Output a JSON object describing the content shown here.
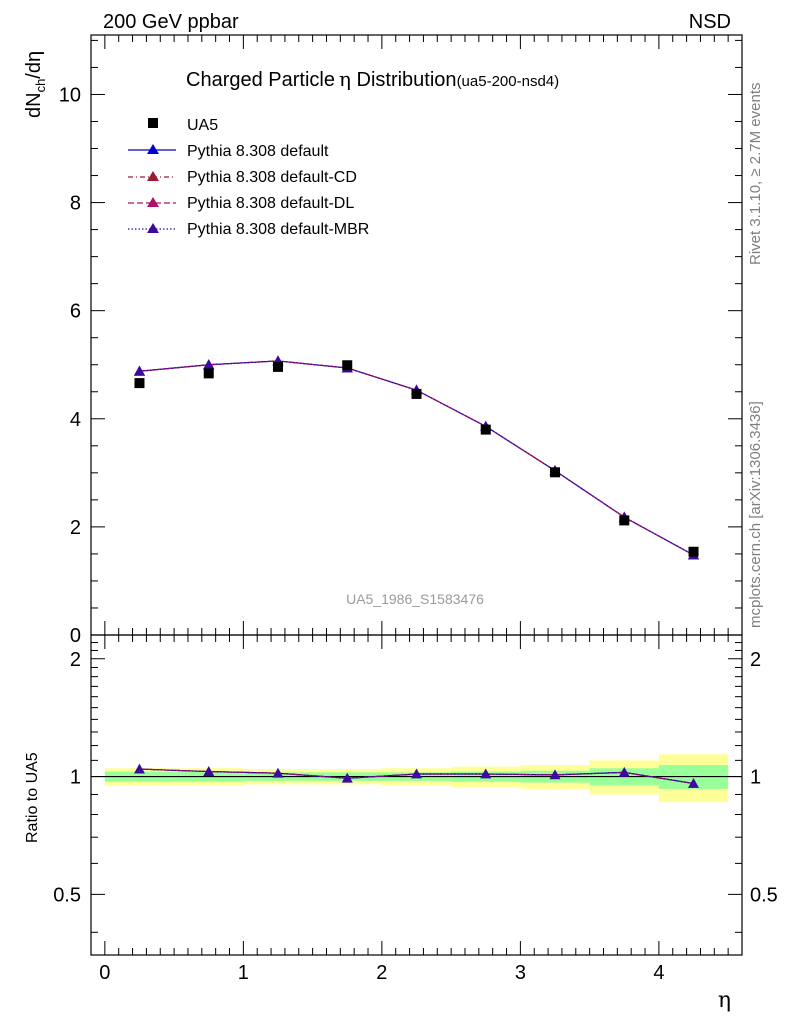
{
  "header": {
    "left": "200 GeV ppbar",
    "right": "NSD",
    "title": "Charged Particle",
    "title_eta": "η",
    "title_suffix": " Distribution",
    "title_id": "(ua5-200-nsd4)",
    "watermark": "UA5_1986_S1583476",
    "side_rivet": "Rivet 3.1.10, ≥ 2.7M events",
    "side_mcplots": "mcplots.cern.ch [arXiv:1306.3436]"
  },
  "axes": {
    "ylabel_main_prefix": "dN",
    "ylabel_main_sub": "ch",
    "ylabel_main_suffix": "/dη",
    "ylabel_ratio": "Ratio to UA5",
    "xlabel": "η"
  },
  "colors": {
    "data": "#000000",
    "default": "#0000cc",
    "cd": "#9b1b30",
    "dl": "#b0106a",
    "mbr": "#3b0aa0",
    "band_outer": "#ffff99",
    "band_inner": "#99ff99"
  },
  "legend": [
    {
      "label": "UA5"
    },
    {
      "label": "Pythia 8.308 default"
    },
    {
      "label": "Pythia 8.308 default-CD"
    },
    {
      "label": "Pythia 8.308 default-DL"
    },
    {
      "label": "Pythia 8.308 default-MBR"
    }
  ],
  "chart_data": {
    "type": "line",
    "xlim": [
      -0.1,
      4.6
    ],
    "ylim_main": [
      0,
      11.1
    ],
    "ylim_ratio": [
      0.35,
      2.3
    ],
    "ratio_log_scale": true,
    "xticks": [
      0,
      1,
      2,
      3,
      4
    ],
    "xticklabels": [
      "0",
      "1",
      "2",
      "3",
      "4"
    ],
    "yticks_main": [
      0,
      2,
      4,
      6,
      8,
      10
    ],
    "yticklabels_main": [
      "0",
      "2",
      "4",
      "6",
      "8",
      "10"
    ],
    "yticks_ratio": [
      0.5,
      1,
      2
    ],
    "yticklabels_ratio": [
      "0.5",
      "1",
      "2"
    ],
    "bins": [
      [
        0,
        0.5
      ],
      [
        0.5,
        1
      ],
      [
        1,
        1.5
      ],
      [
        1.5,
        2
      ],
      [
        2,
        2.5
      ],
      [
        2.5,
        3
      ],
      [
        3,
        3.5
      ],
      [
        3.5,
        4
      ],
      [
        4,
        4.5
      ]
    ],
    "x": [
      0.25,
      0.75,
      1.25,
      1.75,
      2.25,
      2.75,
      3.25,
      3.75,
      4.25
    ],
    "data": [
      4.66,
      4.84,
      4.96,
      4.99,
      4.46,
      3.8,
      3.01,
      2.12,
      1.54
    ],
    "series": [
      {
        "name": "Pythia 8.308 default",
        "values": [
          4.88,
          5.0,
          5.07,
          4.94,
          4.53,
          3.86,
          3.04,
          2.18,
          1.48
        ]
      },
      {
        "name": "Pythia 8.308 default-CD",
        "values": [
          4.88,
          5.0,
          5.07,
          4.94,
          4.53,
          3.86,
          3.04,
          2.18,
          1.48
        ]
      },
      {
        "name": "Pythia 8.308 default-DL",
        "values": [
          4.88,
          5.0,
          5.07,
          4.94,
          4.53,
          3.86,
          3.04,
          2.18,
          1.48
        ]
      },
      {
        "name": "Pythia 8.308 default-MBR",
        "values": [
          4.88,
          5.0,
          5.07,
          4.94,
          4.53,
          3.86,
          3.04,
          2.18,
          1.48
        ]
      }
    ],
    "ratio": [
      1.045,
      1.03,
      1.02,
      0.99,
      1.015,
      1.015,
      1.01,
      1.025,
      0.96
    ],
    "band_inner": [
      0.03,
      0.03,
      0.025,
      0.025,
      0.025,
      0.03,
      0.035,
      0.05,
      0.07
    ],
    "band_outer": [
      0.05,
      0.05,
      0.045,
      0.045,
      0.05,
      0.06,
      0.07,
      0.1,
      0.14
    ],
    "grid": false
  }
}
